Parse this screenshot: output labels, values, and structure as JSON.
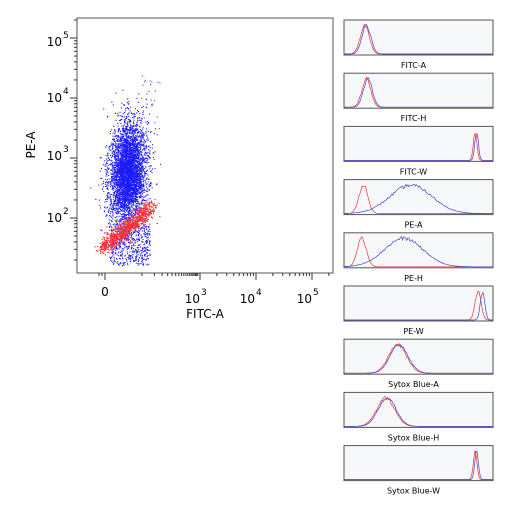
{
  "chart_data": [
    {
      "type": "scatter",
      "xlabel": "FITC-A",
      "ylabel": "PE-A",
      "xscale": "biexponential",
      "yscale": "log",
      "x_ticks": [
        {
          "value": 0,
          "label": "0"
        },
        {
          "value": 1000,
          "label": "10^3"
        },
        {
          "value": 10000,
          "label": "10^4"
        },
        {
          "value": 100000,
          "label": "10^5"
        }
      ],
      "y_ticks": [
        {
          "value": 100,
          "label": "10^2"
        },
        {
          "value": 1000,
          "label": "10^3"
        },
        {
          "value": 10000,
          "label": "10^4"
        },
        {
          "value": 100000,
          "label": "10^5"
        }
      ],
      "xlim": [
        -200,
        150000
      ],
      "ylim": [
        15,
        250000
      ],
      "series": [
        {
          "color": "#1a1aff",
          "population": {
            "x_center": 150,
            "x_spread": 90,
            "y_range": [
              20,
              8000
            ],
            "y_peak": 600
          }
        },
        {
          "color": "#ff3333",
          "population": {
            "x_center": 120,
            "x_spread": 100,
            "y_range": [
              25,
              180
            ],
            "diagonal": true
          }
        }
      ],
      "grid": false,
      "legend": "none"
    },
    {
      "type": "area",
      "xlabel": "FITC-A",
      "series": [
        {
          "color": "#ee3333",
          "peak": 0.14,
          "width": 0.03
        },
        {
          "color": "#4444cc",
          "peak": 0.15,
          "width": 0.03
        }
      ]
    },
    {
      "type": "area",
      "xlabel": "FITC-H",
      "series": [
        {
          "color": "#ee3333",
          "peak": 0.15,
          "width": 0.03
        },
        {
          "color": "#4444cc",
          "peak": 0.16,
          "width": 0.03
        }
      ]
    },
    {
      "type": "area",
      "xlabel": "FITC-W",
      "series": [
        {
          "color": "#ee3333",
          "peak": 0.88,
          "width": 0.012
        },
        {
          "color": "#4444cc",
          "peak": 0.89,
          "width": 0.012
        }
      ]
    },
    {
      "type": "area",
      "xlabel": "PE-A",
      "series": [
        {
          "color": "#ee3333",
          "peak": 0.13,
          "width": 0.03
        },
        {
          "color": "#4444cc",
          "peak": 0.45,
          "width": 0.14
        }
      ]
    },
    {
      "type": "area",
      "xlabel": "PE-H",
      "series": [
        {
          "color": "#ee3333",
          "peak": 0.12,
          "width": 0.03
        },
        {
          "color": "#4444cc",
          "peak": 0.4,
          "width": 0.13
        }
      ]
    },
    {
      "type": "area",
      "xlabel": "PE-W",
      "series": [
        {
          "color": "#ee3333",
          "peak": 0.9,
          "width": 0.02
        },
        {
          "color": "#4444cc",
          "peak": 0.93,
          "width": 0.015
        }
      ]
    },
    {
      "type": "area",
      "xlabel": "Sytox Blue-A",
      "series": [
        {
          "color": "#ee3333",
          "peak": 0.36,
          "width": 0.06
        },
        {
          "color": "#4444cc",
          "peak": 0.37,
          "width": 0.06
        }
      ]
    },
    {
      "type": "area",
      "xlabel": "Sytox Blue-H",
      "series": [
        {
          "color": "#ee3333",
          "peak": 0.28,
          "width": 0.06
        },
        {
          "color": "#4444cc",
          "peak": 0.29,
          "width": 0.06
        }
      ]
    },
    {
      "type": "area",
      "xlabel": "Sytox Blue-W",
      "series": [
        {
          "color": "#ee3333",
          "peak": 0.88,
          "width": 0.012
        },
        {
          "color": "#4444cc",
          "peak": 0.89,
          "width": 0.012
        }
      ]
    }
  ]
}
